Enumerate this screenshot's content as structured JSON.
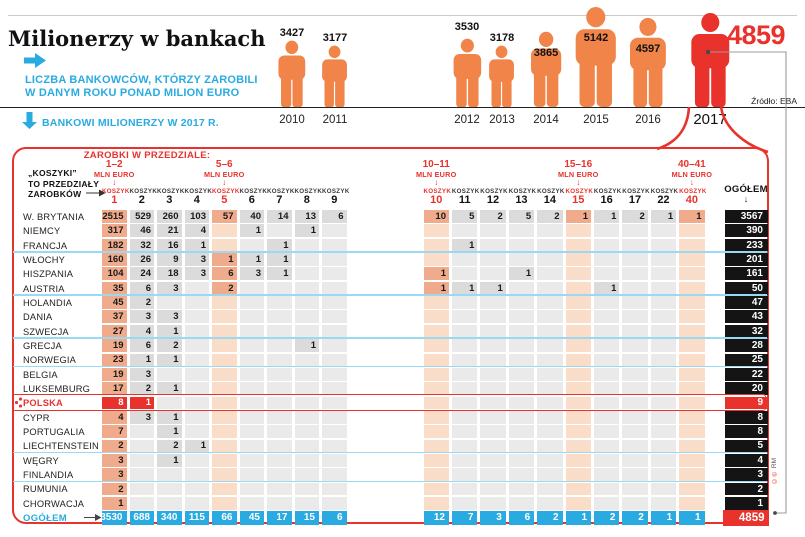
{
  "header": {
    "title": "Milionerzy w bankach",
    "subtitle1": "LICZBA BANKOWCÓW, KTÓRZY ZAROBILI",
    "subtitle2": "W DANYM ROKU PONAD MILION EURO",
    "table_caption": "BANKOWI MILIONERZY W 2017 R.",
    "source": "Źródło: EBA",
    "highlight_value": "4859",
    "credit_marks": "©℗",
    "credit_initials": "RM"
  },
  "colors": {
    "accent_red": "#e8322b",
    "accent_blue": "#29abe2",
    "accent_orange": "#f08449",
    "cell_gray": "#dbdbdc",
    "cell_peach": "#efab8b",
    "total_black": "#141414"
  },
  "chart_data": {
    "type": "pictogram",
    "title": "LICZBA BANKOWCÓW, KTÓRZY ZAROBILI W DANYM ROKU PONAD MILION EURO",
    "categories": [
      "2010",
      "2011",
      "2012",
      "2013",
      "2014",
      "2015",
      "2016",
      "2017"
    ],
    "values": [
      3427,
      3177,
      3530,
      3178,
      3865,
      5142,
      4597,
      4859
    ],
    "highlight_category": "2017",
    "source": "EBA"
  },
  "table": {
    "income_range_header": "ZAROBKI W PRZEDZIALE:",
    "note": [
      "„KOSZYKI”",
      "TO PRZEDZIAŁY",
      "ZAROBKÓW"
    ],
    "column_word": "KOSZYK",
    "columns": [
      "1",
      "2",
      "3",
      "4",
      "5",
      "6",
      "7",
      "8",
      "9",
      "10",
      "11",
      "12",
      "13",
      "14",
      "15",
      "16",
      "17",
      "22",
      "40"
    ],
    "highlight_columns": [
      "1",
      "5",
      "10",
      "15",
      "40"
    ],
    "range_labels": [
      {
        "range": "1–2",
        "unit": "MLN EURO",
        "col_index": 0
      },
      {
        "range": "5–6",
        "unit": "MLN EURO",
        "col_index": 4
      },
      {
        "range": "10–11",
        "unit": "MLN EURO",
        "col_index": 9
      },
      {
        "range": "15–16",
        "unit": "MLN EURO",
        "col_index": 14
      },
      {
        "range": "40–41",
        "unit": "MLN EURO",
        "col_index": 18
      }
    ],
    "total_col_header": "OGÓŁEM",
    "rows": [
      {
        "name": "W. BRYTANIA",
        "values": [
          "2515",
          "529",
          "260",
          "103",
          "57",
          "40",
          "14",
          "13",
          "6",
          "10",
          "5",
          "2",
          "5",
          "2",
          "1",
          "1",
          "2",
          "1",
          "1"
        ],
        "total": "3567"
      },
      {
        "name": "NIEMCY",
        "values": [
          "317",
          "46",
          "21",
          "4",
          "",
          "1",
          "",
          "1",
          "",
          "",
          "",
          "",
          "",
          "",
          "",
          "",
          "",
          "",
          ""
        ],
        "total": "390"
      },
      {
        "name": "FRANCJA",
        "values": [
          "182",
          "32",
          "16",
          "1",
          "",
          "",
          "1",
          "",
          "",
          "",
          "1",
          "",
          "",
          "",
          "",
          "",
          "",
          "",
          ""
        ],
        "total": "233",
        "separator_after": true
      },
      {
        "name": "WŁOCHY",
        "values": [
          "160",
          "26",
          "9",
          "3",
          "1",
          "1",
          "1",
          "",
          "",
          "",
          "",
          "",
          "",
          "",
          "",
          "",
          "",
          "",
          ""
        ],
        "total": "201"
      },
      {
        "name": "HISZPANIA",
        "values": [
          "104",
          "24",
          "18",
          "3",
          "6",
          "3",
          "1",
          "",
          "",
          "1",
          "",
          "",
          "1",
          "",
          "",
          "",
          "",
          "",
          ""
        ],
        "total": "161"
      },
      {
        "name": "AUSTRIA",
        "values": [
          "35",
          "6",
          "3",
          "",
          "2",
          "",
          "",
          "",
          "",
          "1",
          "1",
          "1",
          "",
          "",
          "",
          "1",
          "",
          "",
          ""
        ],
        "total": "50",
        "separator_after": true
      },
      {
        "name": "HOLANDIA",
        "values": [
          "45",
          "2",
          "",
          "",
          "",
          "",
          "",
          "",
          "",
          "",
          "",
          "",
          "",
          "",
          "",
          "",
          "",
          "",
          ""
        ],
        "total": "47"
      },
      {
        "name": "DANIA",
        "values": [
          "37",
          "3",
          "3",
          "",
          "",
          "",
          "",
          "",
          "",
          "",
          "",
          "",
          "",
          "",
          "",
          "",
          "",
          "",
          ""
        ],
        "total": "43"
      },
      {
        "name": "SZWECJA",
        "values": [
          "27",
          "4",
          "1",
          "",
          "",
          "",
          "",
          "",
          "",
          "",
          "",
          "",
          "",
          "",
          "",
          "",
          "",
          "",
          ""
        ],
        "total": "32",
        "separator_after": true
      },
      {
        "name": "GRECJA",
        "values": [
          "19",
          "6",
          "2",
          "",
          "",
          "",
          "",
          "1",
          "",
          "",
          "",
          "",
          "",
          "",
          "",
          "",
          "",
          "",
          ""
        ],
        "total": "28"
      },
      {
        "name": "NORWEGIA",
        "values": [
          "23",
          "1",
          "1",
          "",
          "",
          "",
          "",
          "",
          "",
          "",
          "",
          "",
          "",
          "",
          "",
          "",
          "",
          "",
          ""
        ],
        "total": "25",
        "separator_after": true
      },
      {
        "name": "BELGIA",
        "values": [
          "19",
          "3",
          "",
          "",
          "",
          "",
          "",
          "",
          "",
          "",
          "",
          "",
          "",
          "",
          "",
          "",
          "",
          "",
          ""
        ],
        "total": "22"
      },
      {
        "name": "LUKSEMBURG",
        "values": [
          "17",
          "2",
          "1",
          "",
          "",
          "",
          "",
          "",
          "",
          "",
          "",
          "",
          "",
          "",
          "",
          "",
          "",
          "",
          ""
        ],
        "total": "20"
      },
      {
        "name": "POLSKA",
        "values": [
          "8",
          "1",
          "",
          "",
          "",
          "",
          "",
          "",
          "",
          "",
          "",
          "",
          "",
          "",
          "",
          "",
          "",
          "",
          ""
        ],
        "total": "9",
        "highlight": true
      },
      {
        "name": "CYPR",
        "values": [
          "4",
          "3",
          "1",
          "",
          "",
          "",
          "",
          "",
          "",
          "",
          "",
          "",
          "",
          "",
          "",
          "",
          "",
          "",
          ""
        ],
        "total": "8"
      },
      {
        "name": "PORTUGALIA",
        "values": [
          "7",
          "",
          "1",
          "",
          "",
          "",
          "",
          "",
          "",
          "",
          "",
          "",
          "",
          "",
          "",
          "",
          "",
          "",
          ""
        ],
        "total": "8"
      },
      {
        "name": "LIECHTENSTEIN",
        "values": [
          "2",
          "",
          "2",
          "1",
          "",
          "",
          "",
          "",
          "",
          "",
          "",
          "",
          "",
          "",
          "",
          "",
          "",
          "",
          ""
        ],
        "total": "5",
        "separator_after": true
      },
      {
        "name": "WĘGRY",
        "values": [
          "3",
          "",
          "1",
          "",
          "",
          "",
          "",
          "",
          "",
          "",
          "",
          "",
          "",
          "",
          "",
          "",
          "",
          "",
          ""
        ],
        "total": "4"
      },
      {
        "name": "FINLANDIA",
        "values": [
          "3",
          "",
          "",
          "",
          "",
          "",
          "",
          "",
          "",
          "",
          "",
          "",
          "",
          "",
          "",
          "",
          "",
          "",
          ""
        ],
        "total": "3",
        "separator_after": true
      },
      {
        "name": "RUMUNIA",
        "values": [
          "2",
          "",
          "",
          "",
          "",
          "",
          "",
          "",
          "",
          "",
          "",
          "",
          "",
          "",
          "",
          "",
          "",
          "",
          ""
        ],
        "total": "2"
      },
      {
        "name": "CHORWACJA",
        "values": [
          "1",
          "",
          "",
          "",
          "",
          "",
          "",
          "",
          "",
          "",
          "",
          "",
          "",
          "",
          "",
          "",
          "",
          "",
          ""
        ],
        "total": "1"
      }
    ],
    "totals_row": {
      "label": "OGÓŁEM",
      "values": [
        "3530",
        "688",
        "340",
        "115",
        "66",
        "45",
        "17",
        "15",
        "6",
        "12",
        "7",
        "3",
        "6",
        "2",
        "1",
        "2",
        "2",
        "1",
        "1"
      ],
      "grand_total": "4859"
    }
  }
}
